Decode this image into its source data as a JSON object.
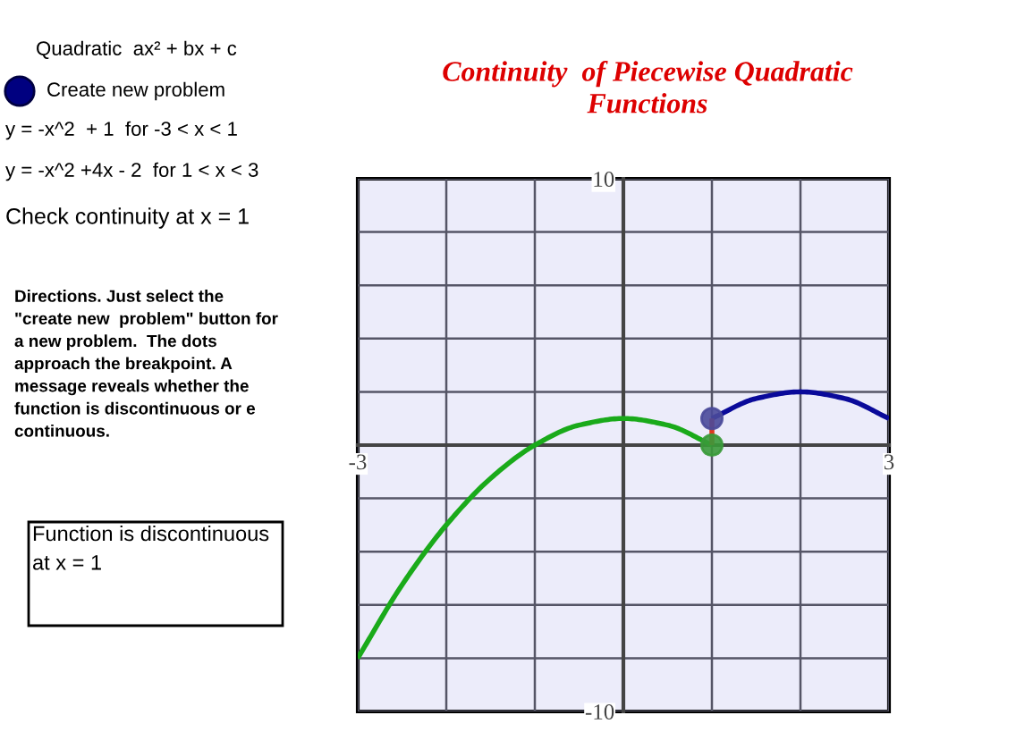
{
  "chart_data": {
    "type": "line",
    "title": "Continuity  of Piecewise Quadratic Functions",
    "annotations": [
      "Quadratic  ax² + bx + c",
      "Create new problem",
      "y = -x^2  + 1  for -3 < x < 1",
      "y = -x^2 +4x - 2  for 1 < x < 3",
      "Check continuity at x = 1",
      "Directions. Just select the \"create new  problem\" button for a new problem.  The dots approach the breakpoint. A message reveals whether the function is discontinuous or e continuous.",
      "Function is discontinuous at x = 1"
    ],
    "series": [
      {
        "color": "#1aaa1a",
        "x": [
          -3,
          -2.5,
          -2,
          -1.5,
          -1,
          -0.5,
          0,
          0.5,
          1
        ],
        "values": [
          -8,
          -5.25,
          -3,
          -1.25,
          0,
          0.75,
          1,
          0.75,
          0
        ]
      },
      {
        "color": "#0a0a9a",
        "x": [
          1,
          1.5,
          2,
          2.5,
          3
        ],
        "values": [
          1,
          1.75,
          2,
          1.75,
          1
        ]
      },
      {
        "color": "#dd3a20",
        "x": [
          1,
          1
        ],
        "values": [
          0,
          1
        ]
      },
      {
        "type": "scatter",
        "marker": "circle",
        "color": "#3a9a3a",
        "x": [
          1
        ],
        "values": [
          0
        ]
      },
      {
        "type": "scatter",
        "marker": "circle",
        "color": "#4a4a9a",
        "x": [
          1
        ],
        "values": [
          1
        ]
      }
    ],
    "xlim": [
      -3,
      3
    ],
    "ylim": [
      -10,
      10
    ],
    "xticks": [
      {
        "value": -3,
        "label": "-3"
      },
      {
        "value": -2,
        "label": null
      },
      {
        "value": -1,
        "label": null
      },
      {
        "value": 1,
        "label": null
      },
      {
        "value": 2,
        "label": null
      },
      {
        "value": 3,
        "label": "3"
      }
    ],
    "yticks": [
      {
        "value": -10,
        "label": "-10"
      },
      {
        "value": -8,
        "label": null
      },
      {
        "value": -6,
        "label": null
      },
      {
        "value": -4,
        "label": null
      },
      {
        "value": -2,
        "label": null
      },
      {
        "value": 2,
        "label": null
      },
      {
        "value": 4,
        "label": null
      },
      {
        "value": 6,
        "label": null
      },
      {
        "value": 8,
        "label": null
      },
      {
        "value": 10,
        "label": "10"
      }
    ],
    "grid": true,
    "line_style": "solid"
  }
}
